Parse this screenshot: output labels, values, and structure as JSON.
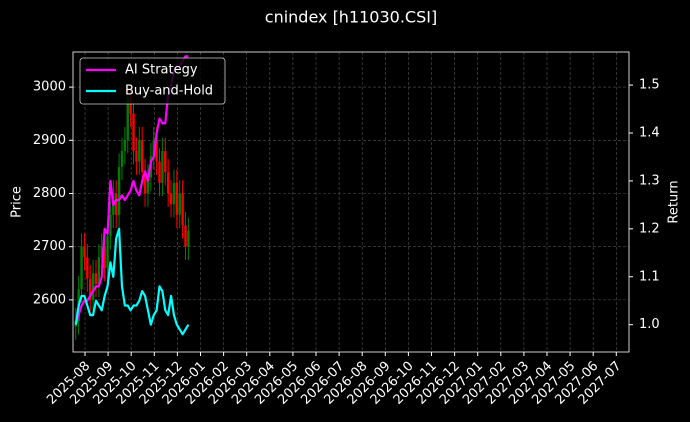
{
  "chart_data": {
    "type": "candlestick",
    "title": "cnindex [h11030.CSI]",
    "y_label": "Price",
    "y2_label": "Return",
    "grid": true,
    "legend": "upper left",
    "up_color": "green",
    "down_color": "red",
    "x": [
      -0.4,
      -0.275,
      -0.15,
      -0.025,
      0.1,
      0.225,
      0.35,
      0.475,
      0.6,
      0.725,
      0.85,
      0.975,
      1.1,
      1.225,
      1.35,
      1.475,
      1.6,
      1.725,
      1.85,
      1.975,
      2.1,
      2.225,
      2.35,
      2.475,
      2.6,
      2.725,
      2.85,
      2.975,
      3.1,
      3.225,
      3.35,
      3.475,
      3.6,
      3.725,
      3.85,
      3.975,
      4.1,
      4.225,
      4.35,
      4.475
    ],
    "open": [
      2550,
      2560,
      2620,
      2700,
      2680,
      2640,
      2600,
      2650,
      2630,
      2680,
      2700,
      2660,
      2720,
      2760,
      2800,
      2760,
      2850,
      2880,
      2900,
      2980,
      2950,
      2880,
      2860,
      2900,
      2840,
      2800,
      2830,
      2870,
      2900,
      2860,
      2820,
      2880,
      2840,
      2800,
      2780,
      2820,
      2760,
      2800,
      2740,
      2700
    ],
    "high": [
      2585,
      2645,
      2725,
      2725,
      2705,
      2665,
      2675,
      2675,
      2705,
      2725,
      2725,
      2745,
      2785,
      2825,
      2825,
      2875,
      2905,
      2925,
      3005,
      3005,
      2975,
      2905,
      2925,
      2925,
      2865,
      2855,
      2895,
      2925,
      2925,
      2885,
      2905,
      2905,
      2865,
      2825,
      2845,
      2845,
      2825,
      2825,
      2765,
      2755
    ],
    "low": [
      2525,
      2535,
      2595,
      2655,
      2615,
      2575,
      2575,
      2605,
      2605,
      2655,
      2635,
      2635,
      2695,
      2735,
      2735,
      2735,
      2825,
      2855,
      2875,
      2925,
      2855,
      2835,
      2835,
      2815,
      2775,
      2775,
      2805,
      2845,
      2835,
      2795,
      2795,
      2815,
      2775,
      2755,
      2755,
      2735,
      2735,
      2715,
      2675,
      2675
    ],
    "close": [
      2560,
      2620,
      2700,
      2680,
      2640,
      2600,
      2650,
      2630,
      2680,
      2700,
      2660,
      2720,
      2760,
      2800,
      2760,
      2850,
      2880,
      2900,
      2980,
      2950,
      2880,
      2860,
      2900,
      2840,
      2800,
      2830,
      2870,
      2900,
      2860,
      2820,
      2880,
      2840,
      2800,
      2780,
      2820,
      2760,
      2800,
      2740,
      2700,
      2730
    ],
    "series": [
      {
        "name": "AI Strategy",
        "color": "#ff00ff",
        "axis": "y2",
        "values": [
          1.0,
          1.02,
          1.04,
          1.05,
          1.05,
          1.06,
          1.07,
          1.08,
          1.08,
          1.1,
          1.2,
          1.19,
          1.3,
          1.25,
          1.26,
          1.26,
          1.27,
          1.26,
          1.27,
          1.28,
          1.3,
          1.28,
          1.27,
          1.3,
          1.32,
          1.3,
          1.34,
          1.35,
          1.4,
          1.43,
          1.42,
          1.42,
          1.48,
          1.5,
          1.53,
          1.54,
          1.54,
          1.55,
          1.56,
          1.56
        ]
      },
      {
        "name": "Buy-and-Hold",
        "color": "#00ffff",
        "axis": "y2",
        "values": [
          1.0,
          1.04,
          1.06,
          1.06,
          1.04,
          1.02,
          1.02,
          1.05,
          1.04,
          1.03,
          1.06,
          1.08,
          1.13,
          1.1,
          1.18,
          1.2,
          1.08,
          1.04,
          1.04,
          1.03,
          1.04,
          1.04,
          1.05,
          1.07,
          1.06,
          1.03,
          1.0,
          1.02,
          1.03,
          1.08,
          1.07,
          1.03,
          1.02,
          1.06,
          1.02,
          1.0,
          0.99,
          0.98,
          0.99,
          1.0
        ]
      }
    ],
    "xlim": [
      -0.52,
      23.55
    ],
    "xticks": [
      {
        "value": 0,
        "label": "2025-08"
      },
      {
        "value": 1,
        "label": "2025-09"
      },
      {
        "value": 2,
        "label": "2025-10"
      },
      {
        "value": 3,
        "label": "2025-11"
      },
      {
        "value": 4,
        "label": "2025-12"
      },
      {
        "value": 5,
        "label": "2026-01"
      },
      {
        "value": 6,
        "label": "2026-02"
      },
      {
        "value": 7,
        "label": "2026-03"
      },
      {
        "value": 8,
        "label": "2026-04"
      },
      {
        "value": 9,
        "label": "2026-05"
      },
      {
        "value": 10,
        "label": "2026-06"
      },
      {
        "value": 11,
        "label": "2026-07"
      },
      {
        "value": 12,
        "label": "2026-08"
      },
      {
        "value": 13,
        "label": "2026-09"
      },
      {
        "value": 14,
        "label": "2026-10"
      },
      {
        "value": 15,
        "label": "2026-11"
      },
      {
        "value": 16,
        "label": "2026-12"
      },
      {
        "value": 17,
        "label": "2027-01"
      },
      {
        "value": 18,
        "label": "2027-02"
      },
      {
        "value": 19,
        "label": "2027-03"
      },
      {
        "value": 20,
        "label": "2027-04"
      },
      {
        "value": 21,
        "label": "2027-05"
      },
      {
        "value": 22,
        "label": "2027-06"
      },
      {
        "value": 23,
        "label": "2027-07"
      }
    ],
    "ylim": [
      2502,
      3066
    ],
    "yticks": [
      2600,
      2700,
      2800,
      2900,
      3000
    ],
    "y2lim": [
      0.943,
      1.569
    ],
    "y2ticks": [
      {
        "value": 1.0,
        "label": "1.0"
      },
      1.1,
      1.2,
      1.3,
      1.4,
      1.5
    ]
  }
}
